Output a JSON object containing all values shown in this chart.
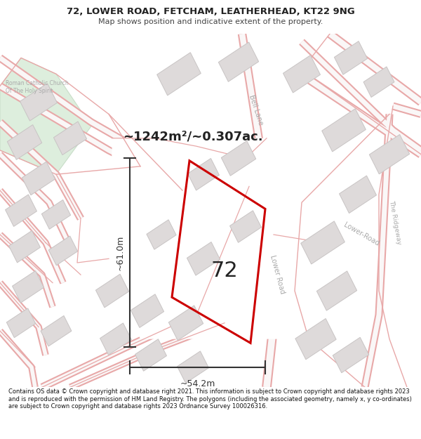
{
  "title": "72, LOWER ROAD, FETCHAM, LEATHERHEAD, KT22 9NG",
  "subtitle": "Map shows position and indicative extent of the property.",
  "area_label": "~1242m²/~0.307ac.",
  "property_number": "72",
  "dim_height": "~61.0m",
  "dim_width": "~54.2m",
  "footer": "Contains OS data © Crown copyright and database right 2021. This information is subject to Crown copyright and database rights 2023 and is reproduced with the permission of HM Land Registry. The polygons (including the associated geometry, namely x, y co-ordinates) are subject to Crown copyright and database rights 2023 Ordnance Survey 100026316.",
  "map_bg": "#f2efef",
  "road_outline_color": "#e8a8a8",
  "road_fill_color": "#faf7f7",
  "building_fill": "#dedada",
  "building_edge": "#c8c4c4",
  "green_fill": "#ddeedd",
  "green_edge": "#c8ddc8",
  "white_block": "#ffffff",
  "property_color": "#cc0000",
  "property_lw": 2.2,
  "dim_color": "#333333",
  "text_color_gray": "#aaaaaa",
  "text_color_dark": "#222222"
}
